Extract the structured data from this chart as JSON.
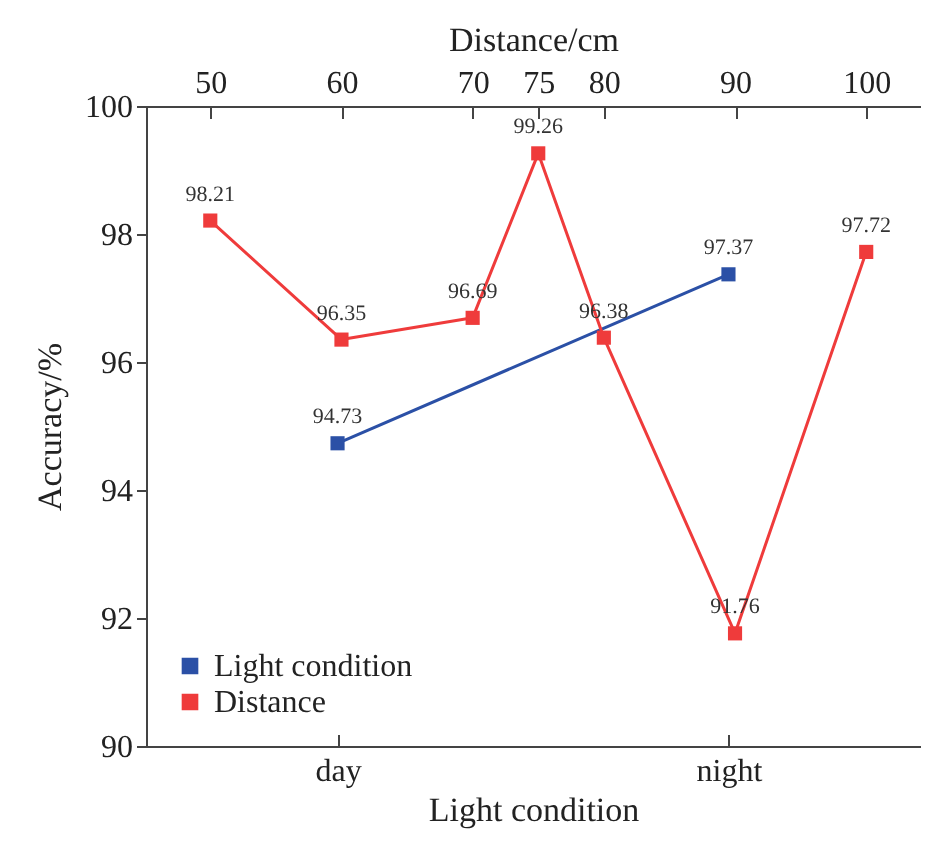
{
  "chart_data": {
    "type": "line",
    "xlabel": "Light condition",
    "ylabel": "Accuracy/%",
    "x2label": "Distance/cm",
    "categories": [
      "day",
      "night"
    ],
    "x2lim": [
      45.1,
      104.1
    ],
    "x2ticks": [
      50,
      60,
      70,
      75,
      80,
      90,
      100
    ],
    "ylim": [
      90,
      100
    ],
    "yticks": [
      90,
      92,
      94,
      96,
      98,
      100
    ],
    "marker": "square",
    "legend": "bottom left",
    "data_labels": true,
    "grid": false,
    "series": [
      {
        "name": "Light condition",
        "color": "#2b50a6",
        "values": [
          94.73,
          97.37
        ]
      },
      {
        "name": "Distance",
        "color": "#ef3b3b",
        "axis": "x2",
        "x": [
          50,
          60,
          70,
          75,
          80,
          90,
          100
        ],
        "values": [
          98.21,
          96.35,
          96.69,
          99.26,
          96.38,
          91.76,
          97.72
        ]
      }
    ]
  }
}
